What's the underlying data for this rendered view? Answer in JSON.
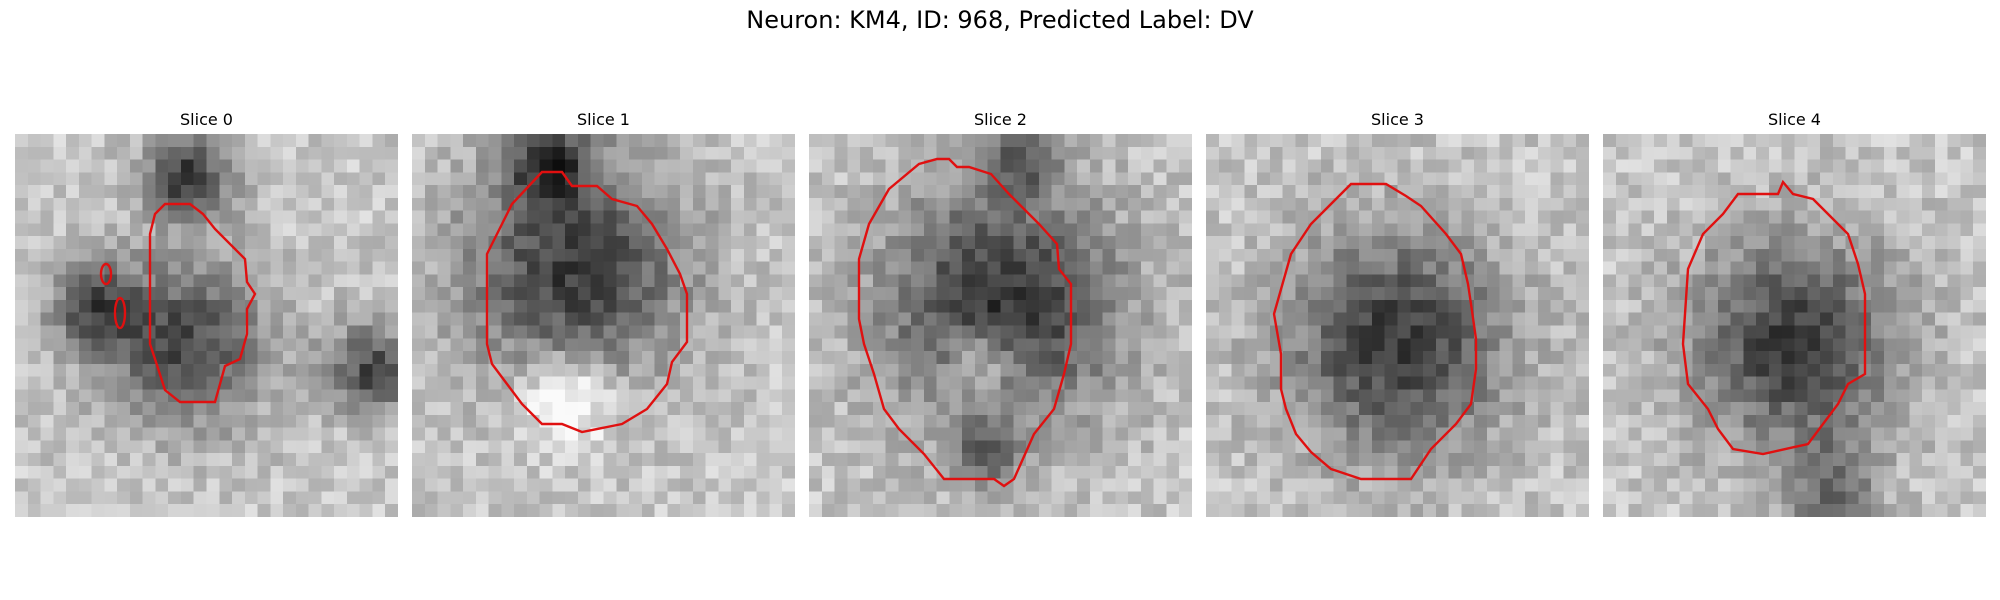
{
  "figure": {
    "title": "Neuron: KM4, ID: 968, Predicted Label: DV",
    "outline_color": "#e01010",
    "colormap": "grayscale",
    "panels": [
      {
        "label": "Slice 0"
      },
      {
        "label": "Slice 1"
      },
      {
        "label": "Slice 2"
      },
      {
        "label": "Slice 3"
      },
      {
        "label": "Slice 4"
      }
    ]
  }
}
